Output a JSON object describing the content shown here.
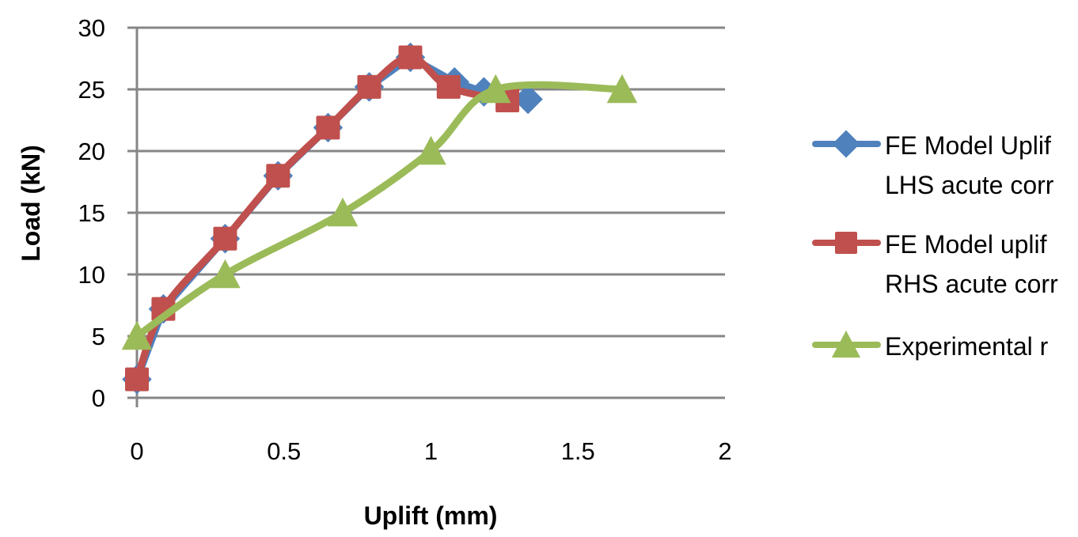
{
  "chart_data": {
    "type": "line",
    "title": "",
    "xlabel": "Uplift (mm)",
    "ylabel": "Load (kN)",
    "xlim": [
      0,
      2
    ],
    "ylim": [
      0,
      30
    ],
    "x_ticks": [
      "0",
      "0.5",
      "1",
      "1.5",
      "2"
    ],
    "y_ticks": [
      "0",
      "5",
      "10",
      "15",
      "20",
      "25",
      "30"
    ],
    "grid": {
      "horizontal": true,
      "vertical": false
    },
    "legend_position": "right",
    "series": [
      {
        "name": "FE Model Uplift LHS acute corner",
        "legend_lines": [
          "FE Model Uplif",
          "LHS acute corr"
        ],
        "color": "#4F81BD",
        "marker": "diamond",
        "smooth": false,
        "x": [
          0,
          0.09,
          0.3,
          0.48,
          0.65,
          0.79,
          0.93,
          1.08,
          1.18,
          1.33
        ],
        "y": [
          1.5,
          7.2,
          12.9,
          18.0,
          21.9,
          25.2,
          27.6,
          25.6,
          24.8,
          24.2
        ]
      },
      {
        "name": "FE Model uplift RHS acute corner",
        "legend_lines": [
          "FE Model uplif",
          "RHS acute corr"
        ],
        "color": "#C0504D",
        "marker": "square",
        "smooth": true,
        "x": [
          0,
          0.09,
          0.3,
          0.48,
          0.65,
          0.79,
          0.93,
          1.06,
          1.26
        ],
        "y": [
          1.5,
          7.2,
          12.9,
          18.0,
          21.9,
          25.2,
          27.6,
          25.2,
          24.1
        ]
      },
      {
        "name": "Experimental result",
        "legend_lines": [
          "Experimental r"
        ],
        "color": "#9BBB59",
        "marker": "triangle",
        "smooth": true,
        "x": [
          0,
          0.3,
          0.7,
          1.0,
          1.22,
          1.65
        ],
        "y": [
          5,
          10,
          15,
          20,
          25,
          25
        ]
      }
    ],
    "gridline_color": "#868686",
    "axis_color": "#868686"
  }
}
